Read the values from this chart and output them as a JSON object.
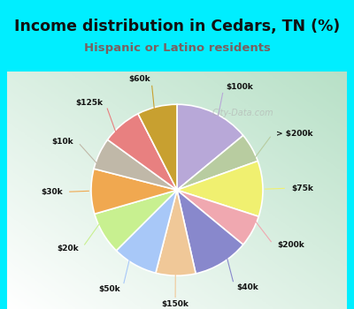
{
  "title": "Income distribution in Cedars, TN (%)",
  "subtitle": "Hispanic or Latino residents",
  "bg_cyan": "#00eeff",
  "bg_chart": "#e8f5ee",
  "labels": [
    "$100k",
    "> $200k",
    "$75k",
    "$200k",
    "$40k",
    "$150k",
    "$50k",
    "$20k",
    "$30k",
    "$10k",
    "$125k",
    "$60k"
  ],
  "sizes": [
    14.0,
    5.5,
    10.5,
    6.0,
    10.5,
    7.5,
    8.5,
    8.0,
    8.5,
    6.0,
    7.5,
    7.5
  ],
  "colors": [
    "#b8a8d8",
    "#b8cca0",
    "#f0f070",
    "#f0a8b0",
    "#8888cc",
    "#f0c898",
    "#a8c8f8",
    "#c8f090",
    "#f0a850",
    "#c0b8a8",
    "#e88080",
    "#c8a030"
  ],
  "title_color": "#111111",
  "subtitle_color": "#7a6060",
  "watermark": "City-Data.com"
}
